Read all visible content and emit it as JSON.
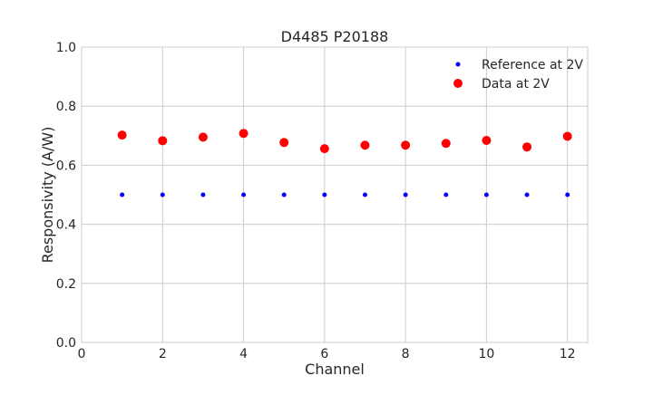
{
  "chart_data": {
    "type": "scatter",
    "title": "D4485 P20188",
    "xlabel": "Channel",
    "ylabel": "Responsivity (A/W)",
    "xlim": [
      0,
      12.5
    ],
    "ylim": [
      0,
      1.0
    ],
    "xticks": [
      "0",
      "2",
      "4",
      "6",
      "8",
      "10",
      "12"
    ],
    "xtick_values": [
      0,
      2,
      4,
      6,
      8,
      10,
      12
    ],
    "yticks": [
      "0.0",
      "0.2",
      "0.4",
      "0.6",
      "0.8",
      "1.0"
    ],
    "ytick_values": [
      0,
      0.2,
      0.4,
      0.6,
      0.8,
      1.0
    ],
    "grid": true,
    "legend_position": "top-right",
    "series": [
      {
        "name": "Reference at 2V",
        "color": "#0000ff",
        "marker": "small",
        "x": [
          1,
          2,
          3,
          4,
          5,
          6,
          7,
          8,
          9,
          10,
          11,
          12
        ],
        "y": [
          0.5,
          0.5,
          0.5,
          0.5,
          0.5,
          0.5,
          0.5,
          0.5,
          0.5,
          0.5,
          0.5,
          0.5
        ]
      },
      {
        "name": "Data at 2V",
        "color": "#ff0000",
        "marker": "large",
        "x": [
          1,
          2,
          3,
          4,
          5,
          6,
          7,
          8,
          9,
          10,
          11,
          12
        ],
        "y": [
          0.702,
          0.683,
          0.695,
          0.708,
          0.677,
          0.656,
          0.668,
          0.668,
          0.674,
          0.684,
          0.662,
          0.698
        ]
      }
    ]
  }
}
